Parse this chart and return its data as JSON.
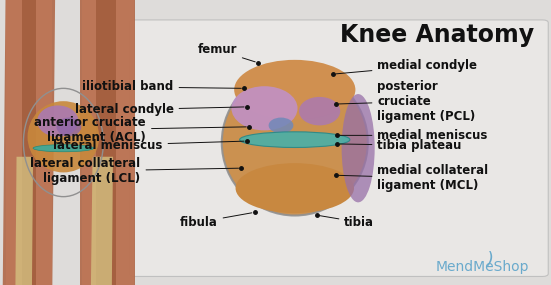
{
  "title": "Knee Anatomy",
  "title_fontsize": 17,
  "title_color": "#111111",
  "bg_outer": "#c8c8c8",
  "panel_bg": "#e8e6e4",
  "panel_edge": "#aaaaaa",
  "brand": "MendMeShop",
  "brand_color": "#6aaacc",
  "brand_fontsize": 10,
  "label_fontsize": 8.5,
  "label_color": "#111111",
  "arrow_color": "#111111",
  "figsize": [
    5.51,
    2.85
  ],
  "dpi": 100,
  "labels_left": [
    {
      "text": "femur",
      "dot": [
        0.468,
        0.78
      ],
      "txt": [
        0.43,
        0.825
      ],
      "ha": "right"
    },
    {
      "text": "iliotibial band",
      "dot": [
        0.443,
        0.69
      ],
      "txt": [
        0.315,
        0.695
      ],
      "ha": "right"
    },
    {
      "text": "lateral condyle",
      "dot": [
        0.448,
        0.625
      ],
      "txt": [
        0.315,
        0.615
      ],
      "ha": "right"
    },
    {
      "text": "anterior cruciate\nligament (ACL)",
      "dot": [
        0.452,
        0.555
      ],
      "txt": [
        0.265,
        0.545
      ],
      "ha": "right"
    },
    {
      "text": "lateral meniscus",
      "dot": [
        0.448,
        0.505
      ],
      "txt": [
        0.295,
        0.49
      ],
      "ha": "right"
    },
    {
      "text": "lateral collateral\nligament (LCL)",
      "dot": [
        0.438,
        0.41
      ],
      "txt": [
        0.255,
        0.4
      ],
      "ha": "right"
    },
    {
      "text": "fibula",
      "dot": [
        0.462,
        0.255
      ],
      "txt": [
        0.395,
        0.22
      ],
      "ha": "right"
    }
  ],
  "labels_right": [
    {
      "text": "medial condyle",
      "dot": [
        0.605,
        0.74
      ],
      "txt": [
        0.685,
        0.77
      ],
      "ha": "left"
    },
    {
      "text": "posterior\ncruciate\nligament (PCL)",
      "dot": [
        0.61,
        0.635
      ],
      "txt": [
        0.685,
        0.645
      ],
      "ha": "left"
    },
    {
      "text": "medial meniscus",
      "dot": [
        0.612,
        0.525
      ],
      "txt": [
        0.685,
        0.525
      ],
      "ha": "left"
    },
    {
      "text": "tibia plateau",
      "dot": [
        0.612,
        0.495
      ],
      "txt": [
        0.685,
        0.49
      ],
      "ha": "left"
    },
    {
      "text": "medial collateral\nligament (MCL)",
      "dot": [
        0.61,
        0.385
      ],
      "txt": [
        0.685,
        0.375
      ],
      "ha": "left"
    },
    {
      "text": "tibia",
      "dot": [
        0.575,
        0.245
      ],
      "txt": [
        0.625,
        0.22
      ],
      "ha": "left"
    }
  ]
}
